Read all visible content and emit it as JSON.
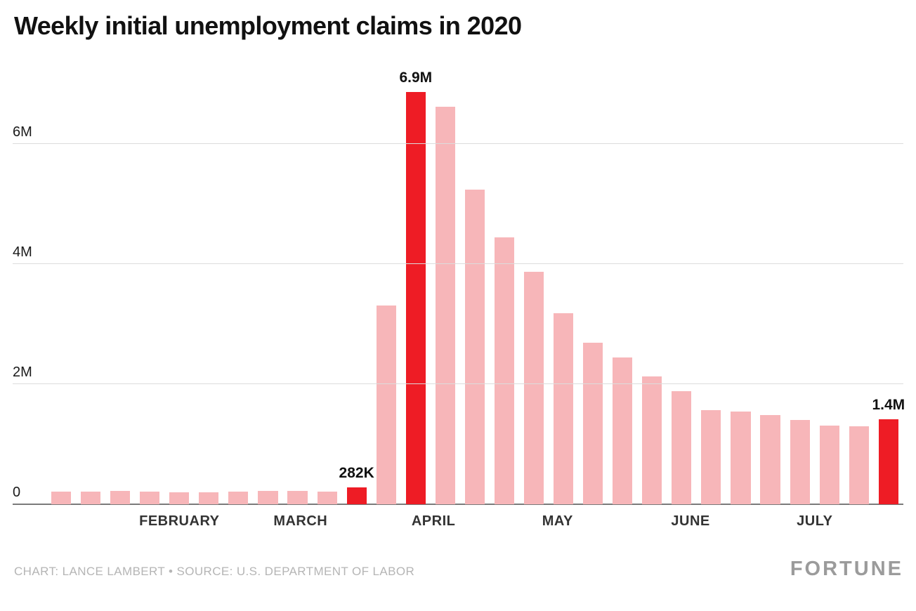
{
  "page": {
    "title": "Weekly initial unemployment claims in 2020",
    "credit": "CHART: LANCE LAMBERT • SOURCE: U.S. DEPARTMENT OF LABOR",
    "brand": "FORTUNE"
  },
  "colors": {
    "bar": "#f7b6b9",
    "bar_highlight": "#ee1c25",
    "gridline": "#dcdcdc",
    "baseline": "#7a7a7a",
    "title": "#111111",
    "axis_label": "#1a1a1a",
    "month_label": "#333333",
    "credit": "#b5b5b5",
    "brand": "#9b9b9b"
  },
  "chart_data": {
    "type": "bar",
    "title": "Weekly initial unemployment claims in 2020",
    "xlabel": "",
    "ylabel": "",
    "ylim": [
      0,
      7250000
    ],
    "grid": true,
    "yticks": [
      {
        "value": 0,
        "label": "0"
      },
      {
        "value": 2000000,
        "label": "2M"
      },
      {
        "value": 4000000,
        "label": "4M"
      },
      {
        "value": 6000000,
        "label": "6M"
      }
    ],
    "bars": [
      {
        "value": 214000,
        "highlight": false
      },
      {
        "value": 207000,
        "highlight": false
      },
      {
        "value": 220000,
        "highlight": false
      },
      {
        "value": 212000,
        "highlight": false
      },
      {
        "value": 201000,
        "highlight": false
      },
      {
        "value": 204000,
        "highlight": false
      },
      {
        "value": 215000,
        "highlight": false
      },
      {
        "value": 220000,
        "highlight": false
      },
      {
        "value": 217000,
        "highlight": false
      },
      {
        "value": 211000,
        "highlight": false
      },
      {
        "value": 282000,
        "highlight": true,
        "label": "282K"
      },
      {
        "value": 3307000,
        "highlight": false
      },
      {
        "value": 6867000,
        "highlight": true,
        "label": "6.9M"
      },
      {
        "value": 6615000,
        "highlight": false
      },
      {
        "value": 5237000,
        "highlight": false
      },
      {
        "value": 4442000,
        "highlight": false
      },
      {
        "value": 3867000,
        "highlight": false
      },
      {
        "value": 3176000,
        "highlight": false
      },
      {
        "value": 2687000,
        "highlight": false
      },
      {
        "value": 2446000,
        "highlight": false
      },
      {
        "value": 2123000,
        "highlight": false
      },
      {
        "value": 1877000,
        "highlight": false
      },
      {
        "value": 1566000,
        "highlight": false
      },
      {
        "value": 1540000,
        "highlight": false
      },
      {
        "value": 1480000,
        "highlight": false
      },
      {
        "value": 1408000,
        "highlight": false
      },
      {
        "value": 1310000,
        "highlight": false
      },
      {
        "value": 1300000,
        "highlight": false
      },
      {
        "value": 1416000,
        "highlight": true,
        "label": "1.4M"
      }
    ],
    "month_labels": [
      {
        "label": "FEBRUARY",
        "center_index": 4.0
      },
      {
        "label": "MARCH",
        "center_index": 8.1
      },
      {
        "label": "APRIL",
        "center_index": 12.6
      },
      {
        "label": "MAY",
        "center_index": 16.8
      },
      {
        "label": "JUNE",
        "center_index": 21.3
      },
      {
        "label": "JULY",
        "center_index": 25.5
      }
    ],
    "legend": null
  }
}
